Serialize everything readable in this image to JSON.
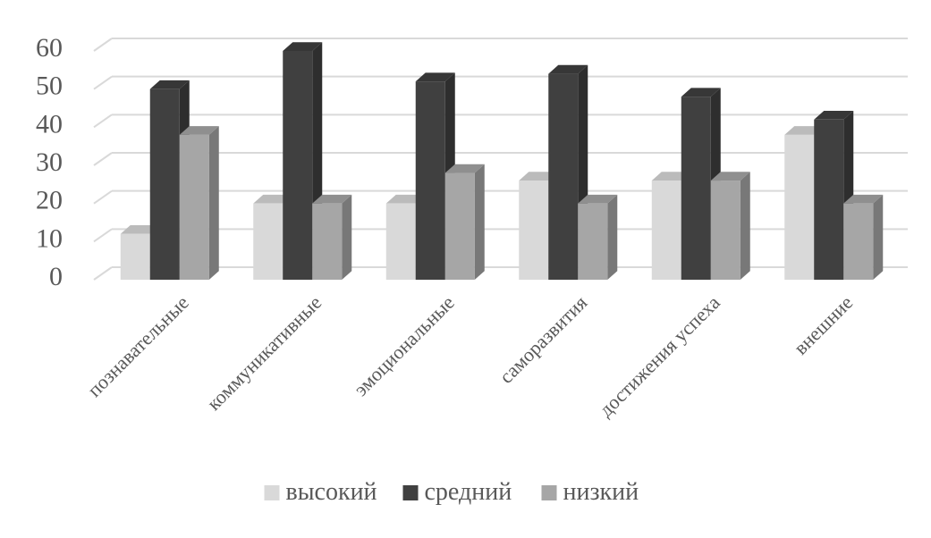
{
  "chart_data": {
    "type": "bar",
    "title": "",
    "xlabel": "",
    "ylabel": "",
    "categories": [
      "познавательные",
      "коммуникативные",
      "эмоциональные",
      "саморазвития",
      "достижения успеха",
      "внешние"
    ],
    "series": [
      {
        "name": "высокий",
        "values": [
          12,
          20,
          20,
          26,
          26,
          38
        ],
        "color": "#d9d9d9"
      },
      {
        "name": "средний",
        "values": [
          50,
          60,
          52,
          54,
          48,
          42
        ],
        "color": "#404040"
      },
      {
        "name": "низкий",
        "values": [
          38,
          20,
          28,
          20,
          26,
          20
        ],
        "color": "#a6a6a6"
      }
    ],
    "ylim": [
      0,
      60
    ],
    "yticks": [
      "0",
      "10",
      "20",
      "30",
      "40",
      "50",
      "60"
    ],
    "grid": true,
    "legend_position": "bottom",
    "style": "3d-clustered-column"
  }
}
